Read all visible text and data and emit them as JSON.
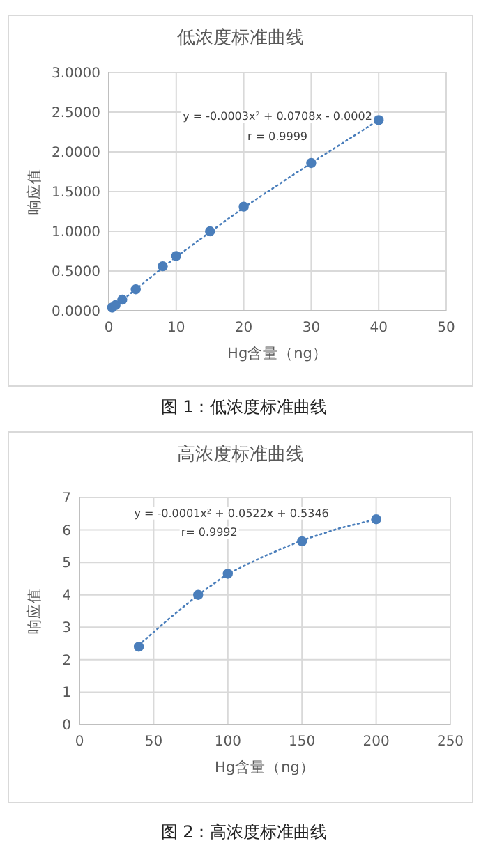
{
  "chart_data": [
    {
      "type": "scatter",
      "title": "低浓度标准曲线",
      "xlabel": "Hg含量（ng）",
      "ylabel": "响应值",
      "xlim": [
        0,
        50
      ],
      "ylim": [
        0,
        3
      ],
      "xticks": [
        0,
        10,
        20,
        30,
        40,
        50
      ],
      "yticks": [
        {
          "value": 0,
          "label": "0.0000"
        },
        {
          "value": 0.5,
          "label": "0.5000"
        },
        {
          "value": 1,
          "label": "1.0000"
        },
        {
          "value": 1.5,
          "label": "1.5000"
        },
        {
          "value": 2,
          "label": "2.0000"
        },
        {
          "value": 2.5,
          "label": "2.5000"
        },
        {
          "value": 3,
          "label": "3.0000"
        }
      ],
      "grid": true,
      "marker": "circle",
      "series": [
        {
          "color": "#4a7ebb",
          "x": [
            0.5,
            1,
            2,
            4,
            8,
            10,
            15,
            20,
            30,
            40
          ],
          "values": [
            0.04,
            0.07,
            0.14,
            0.27,
            0.56,
            0.69,
            1.0,
            1.31,
            1.86,
            2.4
          ]
        },
        {
          "type": "line",
          "line_style": "dotted",
          "marker": "none",
          "color": "#4a7ebb",
          "x": [
            0.5,
            10,
            20,
            30,
            40
          ],
          "values": [
            0.03,
            0.68,
            1.3,
            1.86,
            2.4
          ]
        }
      ],
      "annotations": [
        "y = -0.0003x² + 0.0708x - 0.0002",
        "r = 0.9999",
        "图 1：低浓度标准曲线"
      ]
    },
    {
      "type": "scatter",
      "title": "高浓度标准曲线",
      "xlabel": "Hg含量（ng）",
      "ylabel": "响应值",
      "xlim": [
        0,
        250
      ],
      "ylim": [
        0,
        7
      ],
      "xticks": [
        0,
        50,
        100,
        150,
        200,
        250
      ],
      "yticks": [
        0,
        1,
        2,
        3,
        4,
        5,
        6,
        7
      ],
      "grid": true,
      "marker": "circle",
      "series": [
        {
          "color": "#4a7ebb",
          "x": [
            40,
            80,
            100,
            150,
            200
          ],
          "values": [
            2.4,
            4.0,
            4.65,
            5.65,
            6.33
          ]
        },
        {
          "type": "line",
          "line_style": "dotted",
          "marker": "none",
          "color": "#4a7ebb",
          "x": [
            40,
            60,
            80,
            100,
            125,
            150,
            175,
            200
          ],
          "values": [
            2.45,
            3.25,
            4.0,
            4.65,
            5.2,
            5.68,
            6.05,
            6.33
          ]
        }
      ],
      "annotations": [
        "y = -0.0001x² + 0.0522x + 0.5346",
        "r= 0.9992",
        "图 2：高浓度标准曲线"
      ]
    }
  ]
}
